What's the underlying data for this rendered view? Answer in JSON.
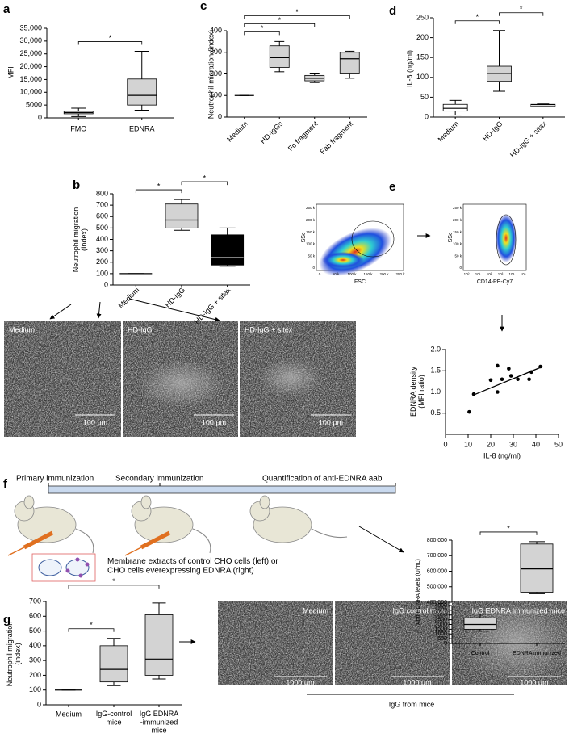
{
  "panel_labels": [
    "a",
    "b",
    "c",
    "d",
    "e",
    "f",
    "g"
  ],
  "micrographs_b": {
    "labels": [
      "Medium",
      "HD-IgG",
      "HD-IgG + sitex"
    ],
    "scale_bar": "100 µm"
  },
  "micrographs_g": {
    "labels": [
      "Medium",
      "IgG control mice",
      "IgG EDNRA immunized mice"
    ],
    "scale_bar": "1000 µm",
    "caption": "IgG from mice"
  },
  "immunization": {
    "steps": [
      "Primary immunization",
      "Secondary immunization",
      "Quantification of anti-EDNRA aab"
    ],
    "membrane_note": "Membrane extracts of control CHO cells (left) or\nCHO cells everexpressing EDNRA (right)"
  },
  "flow_plots": [
    {
      "xlabel": "FSC",
      "ylabel": "SSc",
      "xtick_labels": [
        "0",
        "50 k",
        "100 k",
        "150 k",
        "200 k",
        "250 k"
      ],
      "ytick_labels": [
        "0",
        "50 k",
        "100 k",
        "150 k",
        "200 k",
        "250 k"
      ]
    },
    {
      "xlabel": "CD14-PE-Cy7",
      "ylabel": "SSc",
      "xtick_labels": [
        "10⁰",
        "10¹",
        "10²",
        "10³",
        "10⁴",
        "10⁵"
      ],
      "ytick_labels": [
        "0",
        "50 k",
        "100 k",
        "150 k",
        "200 k",
        "250 k"
      ]
    }
  ],
  "chart_data": [
    {
      "type": "box",
      "ylabel": "MFI",
      "categories": [
        "FMO",
        "EDNRA"
      ],
      "box_colors": [
        "#d3d3d3",
        "#d3d3d3"
      ],
      "boxes": [
        {
          "min": 500,
          "q1": 1600,
          "median": 2100,
          "q3": 2700,
          "max": 3800
        },
        {
          "min": 3000,
          "q1": 5000,
          "median": 8800,
          "q3": 15200,
          "max": 26000
        }
      ],
      "ylim": [
        0,
        35000
      ],
      "yticks": [
        0,
        5000,
        {
          "value": 10000,
          "label": "10,000"
        },
        {
          "value": 15000,
          "label": "15,000"
        },
        {
          "value": 20000,
          "label": "20,000"
        },
        {
          "value": 25000,
          "label": "25,000"
        },
        {
          "value": 30000,
          "label": "30,000"
        },
        {
          "value": 35000,
          "label": "35,000"
        }
      ],
      "significance": [
        {
          "between": [
            0,
            1
          ],
          "label": "*"
        }
      ]
    },
    {
      "type": "box",
      "ylabel": "Neutrophil migration (index)",
      "categories": [
        "Medium",
        "HD-IgGs",
        "Fc fragment",
        "Fab fragment"
      ],
      "box_colors": [
        "#d3d3d3",
        "#d3d3d3",
        "#d3d3d3",
        "#d3d3d3"
      ],
      "boxes": [
        {
          "min": 100,
          "q1": 100,
          "median": 100,
          "q3": 100,
          "max": 100
        },
        {
          "min": 210,
          "q1": 230,
          "median": 275,
          "q3": 330,
          "max": 350
        },
        {
          "min": 160,
          "q1": 168,
          "median": 180,
          "q3": 193,
          "max": 200
        },
        {
          "min": 180,
          "q1": 200,
          "median": 270,
          "q3": 300,
          "max": 305
        }
      ],
      "ylim": [
        0,
        400
      ],
      "yticks": [
        0,
        100,
        200,
        300,
        400
      ],
      "significance": [
        {
          "between": [
            0,
            1
          ],
          "label": "*"
        },
        {
          "between": [
            0,
            2
          ],
          "label": "*"
        },
        {
          "between": [
            0,
            3
          ],
          "label": "*"
        }
      ]
    },
    {
      "type": "box",
      "ylabel": "IL-8 (ng/ml)",
      "categories": [
        "Medium",
        "HD-IgG",
        "HD-IgG + sitax"
      ],
      "box_colors": [
        "#ffffff",
        "#d3d3d3",
        "#000000"
      ],
      "boxes": [
        {
          "min": 5,
          "q1": 15,
          "median": 22,
          "q3": 32,
          "max": 42
        },
        {
          "min": 65,
          "q1": 90,
          "median": 110,
          "q3": 128,
          "max": 218
        },
        {
          "min": 26,
          "q1": 27,
          "median": 29,
          "q3": 32,
          "max": 33
        }
      ],
      "ylim": [
        0,
        250
      ],
      "yticks": [
        0,
        50,
        100,
        150,
        200,
        250
      ],
      "significance": [
        {
          "between": [
            0,
            1
          ],
          "label": "*"
        },
        {
          "between": [
            1,
            2
          ],
          "label": "*"
        }
      ]
    },
    {
      "type": "box",
      "ylabel": "Neutrophil migration\n(Index)",
      "categories": [
        "Medium",
        "HD-IgG",
        "HD-IgG + sitax"
      ],
      "box_colors": [
        "#d3d3d3",
        "#d3d3d3",
        "#000000"
      ],
      "boxes": [
        {
          "min": 100,
          "q1": 100,
          "median": 100,
          "q3": 100,
          "max": 100
        },
        {
          "min": 480,
          "q1": 500,
          "median": 570,
          "q3": 710,
          "max": 750
        },
        {
          "min": 165,
          "q1": 175,
          "median": 240,
          "q3": 440,
          "max": 500
        }
      ],
      "ylim": [
        0,
        800
      ],
      "yticks": [
        0,
        100,
        200,
        300,
        400,
        500,
        600,
        700,
        800
      ],
      "significance": [
        {
          "between": [
            0,
            1
          ],
          "label": "*"
        },
        {
          "between": [
            1,
            2
          ],
          "label": "*"
        }
      ]
    },
    {
      "type": "scatter",
      "xlabel": "IL-8 (ng/ml)",
      "ylabel": "EDNRA density\n(MFI ratio)",
      "color": "#000000",
      "x": [
        10.5,
        12.5,
        20,
        23,
        23,
        25,
        28,
        29,
        32,
        37,
        38,
        42
      ],
      "y": [
        0.53,
        0.95,
        1.28,
        1.62,
        1.0,
        1.3,
        1.55,
        1.38,
        1.3,
        1.3,
        1.47,
        1.6
      ],
      "trend_line": {
        "x": [
          12,
          43
        ],
        "y": [
          0.92,
          1.6
        ]
      },
      "xlim": [
        0,
        50
      ],
      "xticks": [
        0,
        10,
        20,
        30,
        40,
        50
      ],
      "ylim": [
        0,
        2
      ],
      "yticks": [
        0.5,
        {
          "value": 1,
          "label": "1.0"
        },
        1.5,
        {
          "value": 2,
          "label": "2.0"
        }
      ]
    },
    {
      "type": "broken_box",
      "ylabel": "Anti-EDNRA levels (U/mL)",
      "categories": [
        "Control",
        "EDNRA immunized"
      ],
      "box_colors": [
        "#d3d3d3",
        "#d3d3d3"
      ],
      "boxes": [
        {
          "min": 1300,
          "q1": 1500,
          "median": 2000,
          "q3": 2700,
          "max": 3100
        },
        {
          "min": 455000,
          "q1": 465000,
          "median": 615000,
          "q3": 775000,
          "max": 790000
        }
      ],
      "upper": {
        "ylim": [
          400000,
          800000
        ],
        "yticks": [
          {
            "value": 400000,
            "label": "400,000"
          },
          {
            "value": 500000,
            "label": "500,000"
          },
          {
            "value": 600000,
            "label": "600,000"
          },
          {
            "value": 700000,
            "label": "700,000"
          },
          {
            "value": 800000,
            "label": "800,000"
          }
        ]
      },
      "lower": {
        "ylim": [
          0,
          4000
        ],
        "yticks": [
          0,
          500,
          1000,
          1500,
          2000,
          2500,
          3000,
          3500,
          4000
        ]
      },
      "significance": [
        {
          "between": [
            0,
            1
          ],
          "label": "*"
        }
      ]
    },
    {
      "type": "box",
      "ylabel": "Neutrophil migration\n(index)",
      "categories": [
        "Medium",
        "IgG-control\nmice",
        "IgG EDNRA\n-immunized\nmice"
      ],
      "box_colors": [
        "#d3d3d3",
        "#d3d3d3",
        "#d3d3d3"
      ],
      "boxes": [
        {
          "min": 100,
          "q1": 100,
          "median": 100,
          "q3": 100,
          "max": 100
        },
        {
          "min": 130,
          "q1": 155,
          "median": 240,
          "q3": 400,
          "max": 450
        },
        {
          "min": 175,
          "q1": 200,
          "median": 310,
          "q3": 610,
          "max": 690
        }
      ],
      "ylim": [
        0,
        700
      ],
      "yticks": [
        0,
        100,
        200,
        300,
        400,
        500,
        600,
        700
      ],
      "significance": [
        {
          "between": [
            0,
            1
          ],
          "label": "*"
        },
        {
          "between": [
            0,
            2
          ],
          "label": "*"
        }
      ]
    }
  ]
}
